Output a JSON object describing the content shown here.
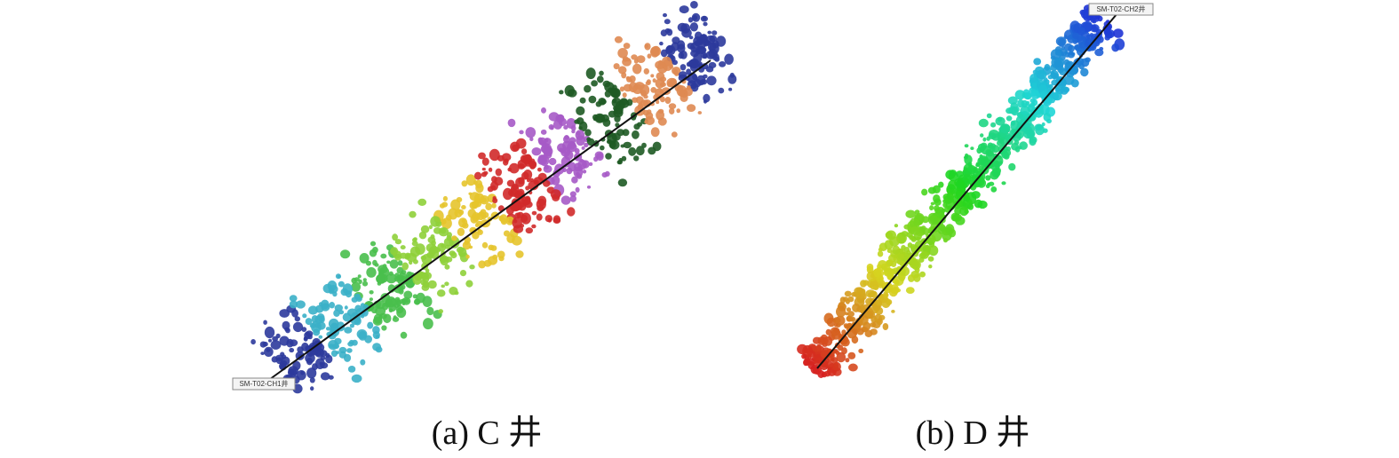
{
  "panels": [
    {
      "well_label": "SM-T02-CH1井",
      "caption": "(a) C 井"
    },
    {
      "well_label": "SM-T02-CH2井",
      "caption": "(b) D 井"
    }
  ]
}
